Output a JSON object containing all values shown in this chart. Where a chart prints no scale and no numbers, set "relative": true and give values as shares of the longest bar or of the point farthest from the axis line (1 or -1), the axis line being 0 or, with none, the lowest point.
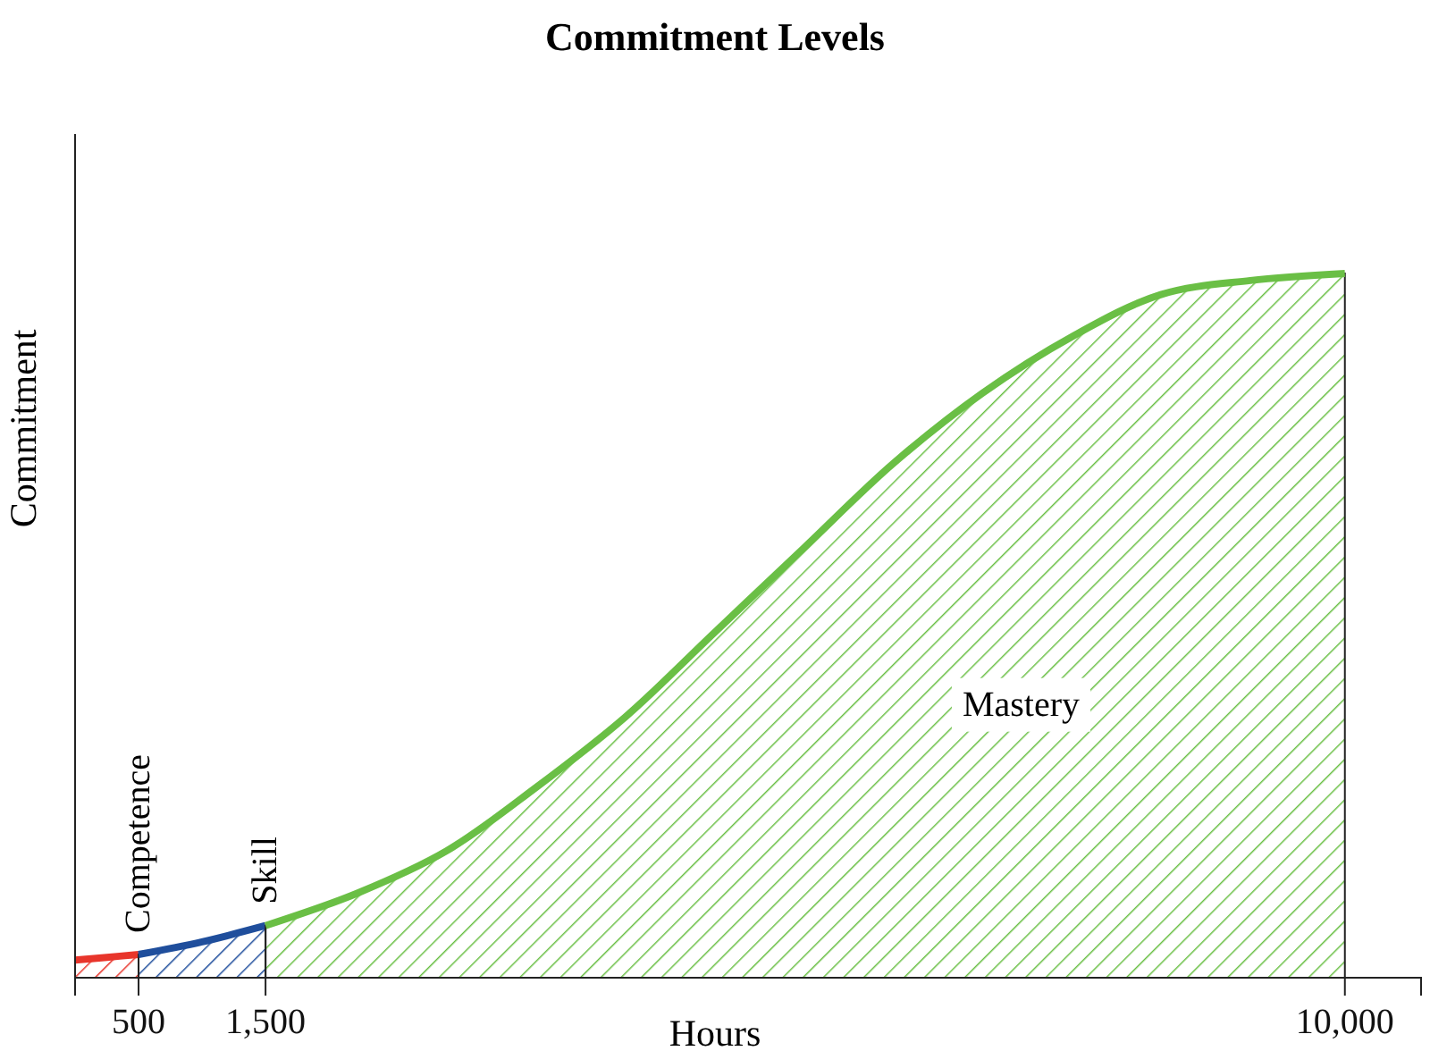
{
  "chart_data": {
    "type": "area",
    "title": "Commitment Levels",
    "xlabel": "Hours",
    "ylabel": "Commitment",
    "relative": true,
    "xlim": [
      0,
      10600
    ],
    "xticks": [
      500,
      {
        "value": 1500,
        "label": "1,500"
      },
      {
        "value": 10000,
        "label": "10,000"
      }
    ],
    "tick_labels": "x",
    "series": [
      {
        "color": "#e8352b",
        "x": [
          0,
          250,
          500
        ],
        "values": [
          0.025,
          0.029,
          0.033
        ]
      },
      {
        "color": "#1f4e9c",
        "x": [
          500,
          1000,
          1500
        ],
        "values": [
          0.033,
          0.051,
          0.074
        ]
      },
      {
        "color": "#6abf45",
        "x": [
          1500,
          2222,
          2925,
          3629,
          4332,
          5035,
          5738,
          6442,
          7145,
          7848,
          8551,
          9255,
          10000
        ],
        "values": [
          0.074,
          0.12,
          0.18,
          0.27,
          0.37,
          0.49,
          0.61,
          0.73,
          0.83,
          0.91,
          0.97,
          0.99,
          1
        ]
      }
    ],
    "annotations": [
      "Competence",
      "Skill",
      "Mastery"
    ]
  }
}
